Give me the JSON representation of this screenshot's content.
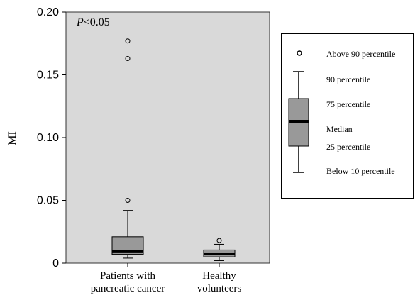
{
  "chart_data": {
    "type": "boxplot",
    "title": "",
    "annotation": {
      "italic": "P",
      "rest": "<0.05"
    },
    "ylabel": "MI",
    "xlabel": "",
    "ylim": [
      0,
      0.2
    ],
    "yticks": [
      {
        "value": 0,
        "label": "0"
      },
      {
        "value": 0.05,
        "label": "0.05"
      },
      {
        "value": 0.1,
        "label": "0.10"
      },
      {
        "value": 0.15,
        "label": "0.15"
      },
      {
        "value": 0.2,
        "label": "0.20"
      }
    ],
    "grid": false,
    "plot_background": "#d9d9d9",
    "box_color": "#999999",
    "median_color": "#000000",
    "categories": [
      {
        "lines": [
          "Patients with",
          "pancreatic cancer"
        ]
      },
      {
        "lines": [
          "Healthy",
          "volunteers"
        ]
      }
    ],
    "boxes": [
      {
        "whisker_low": 0.004,
        "q1": 0.007,
        "median": 0.0095,
        "q3": 0.021,
        "whisker_high": 0.042,
        "outliers": [
          0.05,
          0.163,
          0.177
        ]
      },
      {
        "whisker_low": 0.002,
        "q1": 0.005,
        "median": 0.0072,
        "q3": 0.0105,
        "whisker_high": 0.015,
        "outliers": [
          0.018
        ]
      }
    ]
  },
  "legend": {
    "position": "right",
    "entries": {
      "above90": "Above 90 percentile",
      "p90": "90 percentile",
      "p75": "75 percentile",
      "median": "Median",
      "p25": "25 percentile",
      "below10": "Below 10 percentile"
    }
  }
}
